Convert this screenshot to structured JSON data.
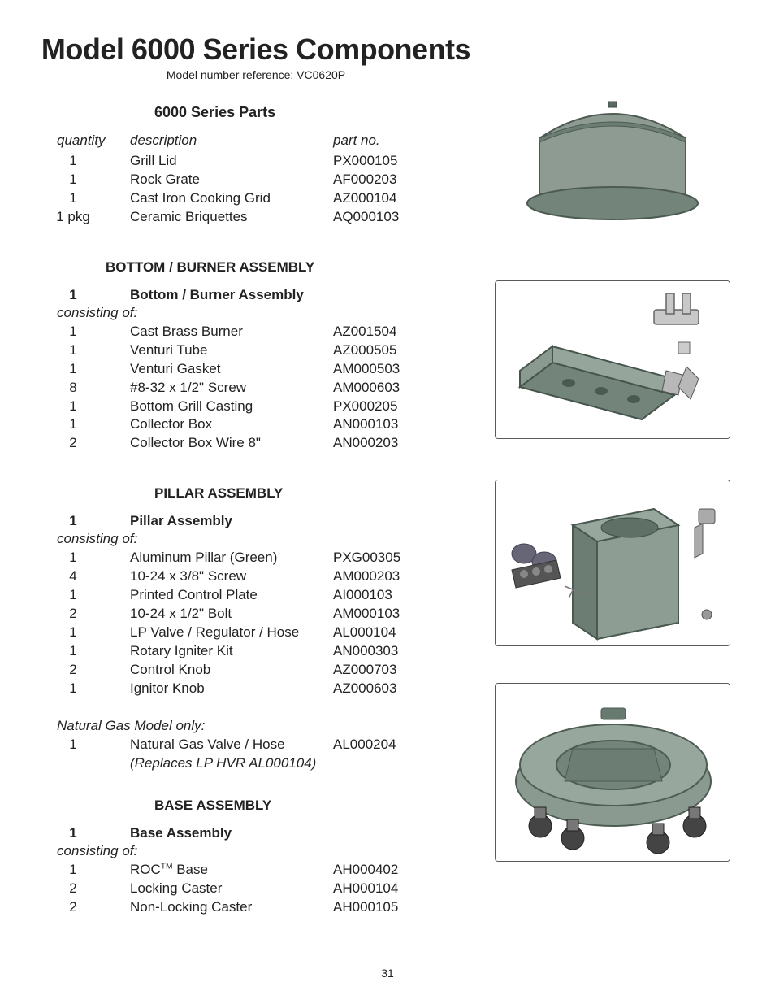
{
  "title": "Model 6000 Series Components",
  "subtitle": "Model number reference: VC0620P",
  "page_number": "31",
  "headers": {
    "qty": "quantity",
    "desc": "description",
    "part": "part no."
  },
  "consisting_label": "consisting of:",
  "sections": {
    "parts": {
      "heading": "6000 Series Parts",
      "rows": [
        {
          "q": "1",
          "d": "Grill Lid",
          "p": "PX000105"
        },
        {
          "q": "1",
          "d": "Rock Grate",
          "p": "AF000203"
        },
        {
          "q": "1",
          "d": "Cast Iron Cooking Grid",
          "p": "AZ000104"
        },
        {
          "q": "1 pkg",
          "d": "Ceramic Briquettes",
          "p": "AQ000103"
        }
      ]
    },
    "burner": {
      "heading": "BOTTOM / BURNER ASSEMBLY",
      "assembly_qty": "1",
      "assembly_title": "Bottom / Burner Assembly",
      "rows": [
        {
          "q": "1",
          "d": "Cast Brass Burner",
          "p": "AZ001504"
        },
        {
          "q": "1",
          "d": "Venturi Tube",
          "p": "AZ000505"
        },
        {
          "q": "1",
          "d": "Venturi Gasket",
          "p": "AM000503"
        },
        {
          "q": "8",
          "d": "#8-32 x 1/2\" Screw",
          "p": "AM000603"
        },
        {
          "q": "1",
          "d": "Bottom Grill Casting",
          "p": "PX000205"
        },
        {
          "q": "1",
          "d": "Collector Box",
          "p": "AN000103"
        },
        {
          "q": "2",
          "d": "Collector Box Wire 8\"",
          "p": "AN000203"
        }
      ]
    },
    "pillar": {
      "heading": "PILLAR ASSEMBLY",
      "assembly_qty": "1",
      "assembly_title": "Pillar Assembly",
      "rows": [
        {
          "q": "1",
          "d": "Aluminum Pillar (Green)",
          "p": "PXG00305"
        },
        {
          "q": "4",
          "d": "10-24 x 3/8\" Screw",
          "p": "AM000203"
        },
        {
          "q": "1",
          "d": "Printed Control Plate",
          "p": "AI000103"
        },
        {
          "q": "2",
          "d": "10-24 x 1/2\" Bolt",
          "p": "AM000103"
        },
        {
          "q": "1",
          "d": "LP Valve / Regulator / Hose",
          "p": "AL000104"
        },
        {
          "q": "1",
          "d": "Rotary Igniter Kit",
          "p": "AN000303"
        },
        {
          "q": "2",
          "d": "Control Knob",
          "p": "AZ000703"
        },
        {
          "q": "1",
          "d": "Ignitor Knob",
          "p": "AZ000603"
        }
      ],
      "ng_note": "Natural Gas Model only:",
      "ng_rows": [
        {
          "q": "1",
          "d": "Natural Gas Valve / Hose",
          "p": "AL000204"
        }
      ],
      "ng_replaces": "(Replaces LP HVR AL000104)"
    },
    "base": {
      "heading": "BASE ASSEMBLY",
      "assembly_qty": "1",
      "assembly_title": "Base Assembly",
      "rows": [
        {
          "q": "1",
          "d": "ROC™ Base",
          "p": "AH000402"
        },
        {
          "q": "2",
          "d": "Locking Caster",
          "p": "AH000104"
        },
        {
          "q": "2",
          "d": "Non-Locking Caster",
          "p": "AH000105"
        }
      ]
    }
  },
  "figures": {
    "lid": {
      "bg": "#f1f1f2",
      "fill": "#8d9b92",
      "stroke": "#4d5a52"
    },
    "burner": {
      "bg": "#f8f8f8",
      "fill": "#73857a",
      "stroke": "#45554c"
    },
    "pillar": {
      "bg": "#f8f8f8",
      "fill": "#7e9086",
      "stroke": "#4a5a51"
    },
    "base": {
      "bg": "#f8f8f8",
      "fill": "#8a9a90",
      "stroke": "#4e5d54"
    }
  }
}
